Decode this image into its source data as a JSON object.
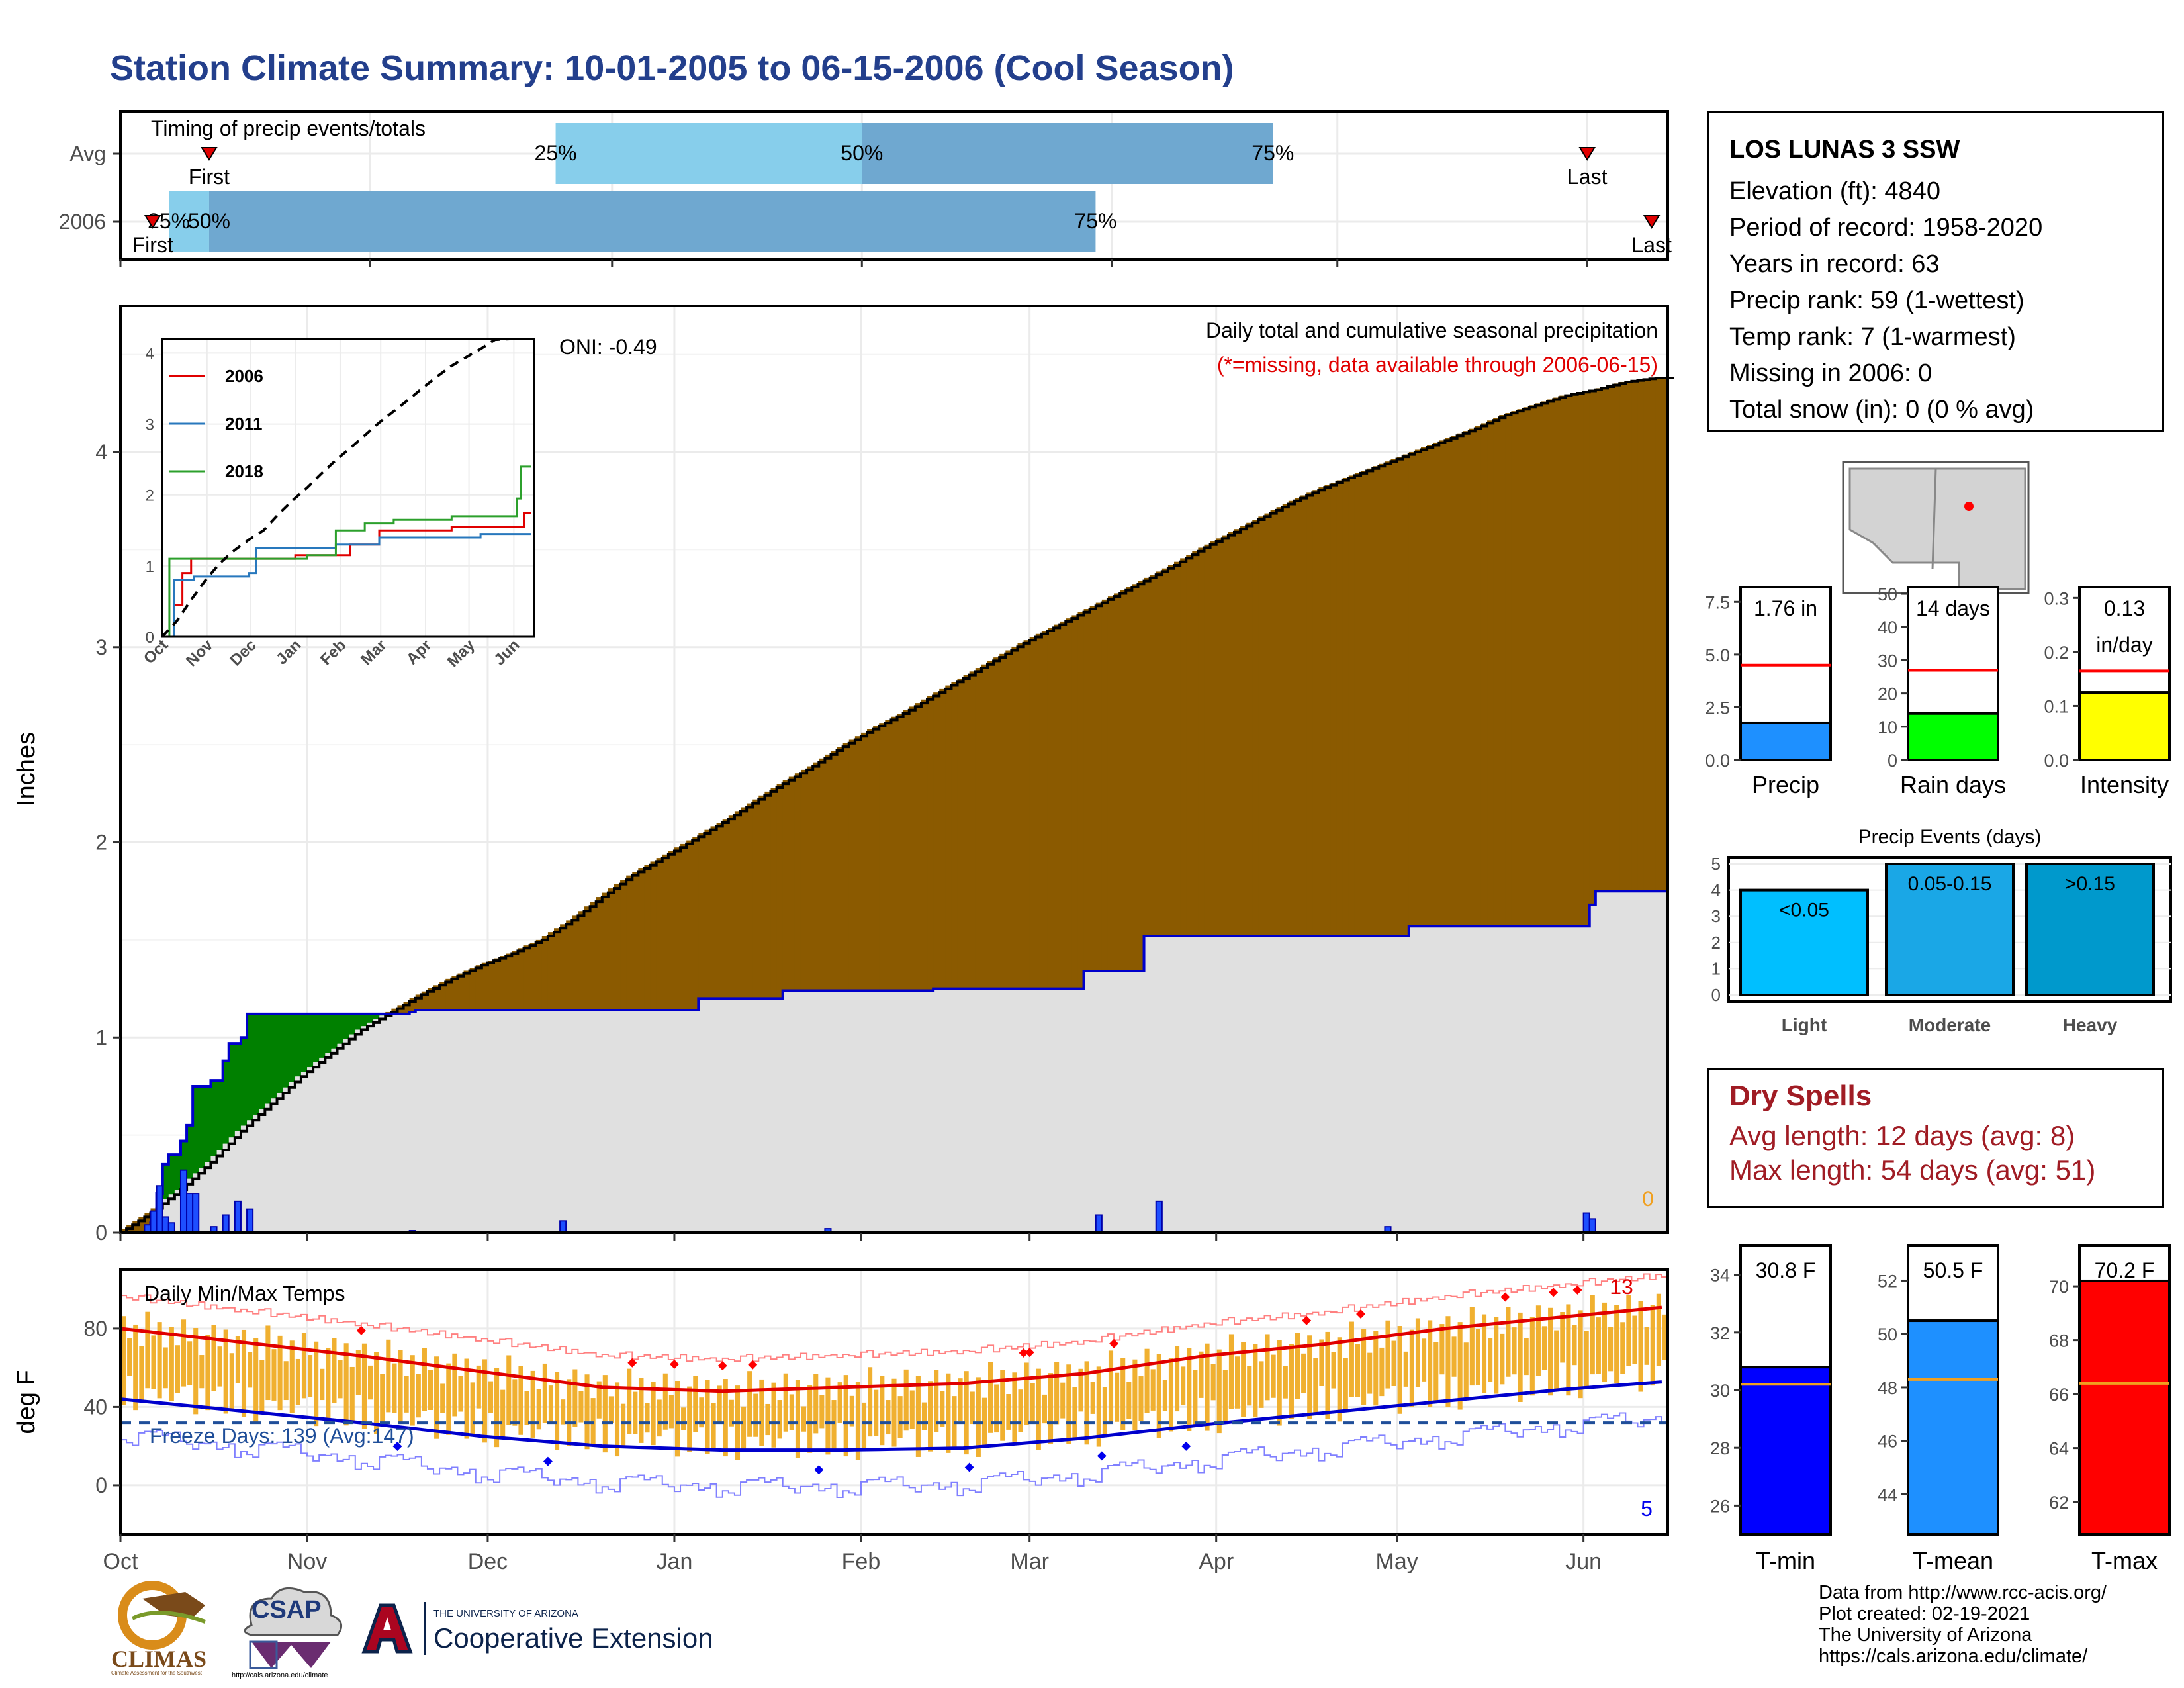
{
  "title": "Station Climate Summary: 10-01-2005 to 06-15-2006 (Cool Season)",
  "timing": {
    "title": "Timing of precip events/totals",
    "rows": [
      {
        "label": "Avg",
        "first": 11,
        "q25": 54,
        "q50": 92,
        "q75": 143,
        "last": 182
      },
      {
        "label": "2006",
        "first": 4,
        "q25": 6,
        "q50": 11,
        "q75": 121,
        "last": 190
      }
    ],
    "marker_first": "First",
    "marker_last": "Last",
    "label_25": "25%",
    "label_50": "50%",
    "label_75": "75%",
    "colors": {
      "light": "#87ceeb",
      "dark": "#6fa8d0",
      "marker": "#e00000"
    }
  },
  "precip": {
    "ylabel": "Inches",
    "title_line1": "Daily total and cumulative seasonal precipitation",
    "title_line2": "(*=missing, data available through 2006-06-15)",
    "oni": "ONI: -0.49",
    "missing_count": "0",
    "yticks": [
      "0",
      "1",
      "2",
      "3",
      "4"
    ],
    "ylim": [
      0,
      4.75
    ],
    "avg_cumulative": {
      "days": [
        0,
        5,
        10,
        15,
        20,
        25,
        30,
        35,
        40,
        45,
        50,
        55,
        60,
        65,
        70,
        75,
        80,
        85,
        90,
        95,
        100,
        105,
        110,
        115,
        120,
        125,
        130,
        135,
        140,
        145,
        150,
        155,
        160,
        165,
        170,
        175,
        180,
        185,
        190,
        195,
        200,
        205,
        210,
        215,
        220,
        225,
        230,
        235,
        240,
        245,
        250,
        255
      ],
      "values": [
        0,
        0.1,
        0.22,
        0.36,
        0.52,
        0.66,
        0.8,
        0.92,
        1.04,
        1.13,
        1.22,
        1.3,
        1.37,
        1.43,
        1.5,
        1.6,
        1.72,
        1.83,
        1.92,
        2.01,
        2.1,
        2.2,
        2.3,
        2.39,
        2.49,
        2.58,
        2.66,
        2.75,
        2.84,
        2.93,
        3.02,
        3.1,
        3.18,
        3.26,
        3.34,
        3.42,
        3.51,
        3.59,
        3.67,
        3.75,
        3.82,
        3.88,
        3.94,
        4.0,
        4.06,
        4.12,
        4.19,
        4.24,
        4.29,
        4.32,
        4.36,
        4.38
      ]
    },
    "cumulative_2006": {
      "steps": [
        [
          0,
          0
        ],
        [
          5,
          0.05
        ],
        [
          6,
          0.2
        ],
        [
          7,
          0.35
        ],
        [
          8,
          0.4
        ],
        [
          10,
          0.47
        ],
        [
          11,
          0.55
        ],
        [
          12,
          0.75
        ],
        [
          15,
          0.78
        ],
        [
          17,
          0.88
        ],
        [
          18,
          0.97
        ],
        [
          20,
          1.0
        ],
        [
          21,
          1.12
        ],
        [
          48,
          1.13
        ],
        [
          49,
          1.14
        ],
        [
          70,
          1.14
        ],
        [
          96,
          1.2
        ],
        [
          110,
          1.24
        ],
        [
          135,
          1.25
        ],
        [
          160,
          1.34
        ],
        [
          170,
          1.52
        ],
        [
          190,
          1.52
        ],
        [
          214,
          1.57
        ],
        [
          243,
          1.57
        ],
        [
          244,
          1.68
        ],
        [
          245,
          1.75
        ],
        [
          257,
          1.75
        ]
      ]
    },
    "daily_bars": [
      {
        "day": 4,
        "value": 0.04
      },
      {
        "day": 5,
        "value": 0.11
      },
      {
        "day": 6,
        "value": 0.24
      },
      {
        "day": 7,
        "value": 0.08
      },
      {
        "day": 8,
        "value": 0.05
      },
      {
        "day": 10,
        "value": 0.32
      },
      {
        "day": 11,
        "value": 0.2
      },
      {
        "day": 12,
        "value": 0.2
      },
      {
        "day": 15,
        "value": 0.03
      },
      {
        "day": 17,
        "value": 0.09
      },
      {
        "day": 19,
        "value": 0.16
      },
      {
        "day": 21,
        "value": 0.12
      },
      {
        "day": 48,
        "value": 0.01
      },
      {
        "day": 73,
        "value": 0.06
      },
      {
        "day": 117,
        "value": 0.02
      },
      {
        "day": 162,
        "value": 0.09
      },
      {
        "day": 172,
        "value": 0.16
      },
      {
        "day": 210,
        "value": 0.03
      },
      {
        "day": 243,
        "value": 0.1
      },
      {
        "day": 244,
        "value": 0.07
      }
    ],
    "colors": {
      "above": "#8b5a00",
      "below": "#008000",
      "fill": "#e0e0e0",
      "line": "#0000cc",
      "bar": "#1e4fff"
    }
  },
  "inset": {
    "ylim": [
      0,
      4.2
    ],
    "yticks": [
      "0",
      "1",
      "2",
      "3",
      "4"
    ],
    "xticks": [
      "Oct",
      "Nov",
      "Dec",
      "Jan",
      "Feb",
      "Mar",
      "Apr",
      "May",
      "Jun"
    ],
    "series": [
      {
        "name": "2006",
        "color": "#e00000",
        "steps": [
          [
            0,
            0
          ],
          [
            8,
            0.45
          ],
          [
            14,
            0.9
          ],
          [
            20,
            1.1
          ],
          [
            92,
            1.15
          ],
          [
            120,
            1.15
          ],
          [
            130,
            1.3
          ],
          [
            150,
            1.5
          ],
          [
            200,
            1.55
          ],
          [
            250,
            1.75
          ],
          [
            255,
            1.75
          ]
        ]
      },
      {
        "name": "2011",
        "color": "#2878bd",
        "steps": [
          [
            0,
            0
          ],
          [
            8,
            0.8
          ],
          [
            14,
            0.8
          ],
          [
            22,
            0.85
          ],
          [
            60,
            0.9
          ],
          [
            65,
            1.25
          ],
          [
            120,
            1.3
          ],
          [
            150,
            1.4
          ],
          [
            220,
            1.45
          ],
          [
            255,
            1.45
          ]
        ]
      },
      {
        "name": "2018",
        "color": "#2ca02c",
        "steps": [
          [
            0,
            0
          ],
          [
            5,
            1.1
          ],
          [
            58,
            1.1
          ],
          [
            100,
            1.15
          ],
          [
            120,
            1.5
          ],
          [
            140,
            1.6
          ],
          [
            160,
            1.65
          ],
          [
            200,
            1.7
          ],
          [
            245,
            1.95
          ],
          [
            248,
            2.4
          ],
          [
            255,
            2.4
          ]
        ]
      }
    ],
    "avg": {
      "days": [
        0,
        10,
        20,
        30,
        40,
        50,
        60,
        70,
        80,
        90,
        100,
        110,
        120,
        130,
        140,
        150,
        160,
        170,
        180,
        190,
        200,
        210,
        220,
        230,
        240,
        250,
        255
      ],
      "values": [
        0,
        0.22,
        0.52,
        0.8,
        1.04,
        1.22,
        1.37,
        1.5,
        1.72,
        1.92,
        2.1,
        2.3,
        2.49,
        2.66,
        2.84,
        3.02,
        3.18,
        3.34,
        3.51,
        3.67,
        3.82,
        3.94,
        4.06,
        4.19,
        4.29,
        4.36,
        4.4
      ]
    }
  },
  "temps": {
    "ylabel": "deg F",
    "title": "Daily Min/Max Temps",
    "freeze_label": "Freeze Days: 139 (Avg:147)",
    "freeze_value": 32,
    "yticks": [
      "0",
      "40",
      "80"
    ],
    "ylim": [
      -25,
      110
    ],
    "count_high": "13",
    "count_low": "5",
    "avg_max": {
      "days": [
        0,
        20,
        40,
        60,
        80,
        100,
        120,
        140,
        160,
        180,
        200,
        220,
        240,
        257
      ],
      "values": [
        80,
        73,
        66,
        58,
        50,
        48,
        50,
        52,
        57,
        66,
        72,
        80,
        86,
        91
      ]
    },
    "avg_min": {
      "days": [
        0,
        20,
        40,
        60,
        80,
        100,
        120,
        140,
        160,
        180,
        200,
        220,
        240,
        257
      ],
      "values": [
        44,
        38,
        32,
        25,
        20,
        18,
        18,
        19,
        24,
        31,
        37,
        43,
        49,
        53
      ]
    },
    "colors": {
      "bar": "#f0b030",
      "max": "#e00000",
      "min": "#0000cc",
      "freeze": "#1f4e99"
    }
  },
  "months": [
    "Oct",
    "Nov",
    "Dec",
    "Jan",
    "Feb",
    "Mar",
    "Apr",
    "May",
    "Jun"
  ],
  "station": {
    "name": "LOS LUNAS 3 SSW",
    "lines": [
      "Elevation (ft): 4840",
      "Period of record: 1958-2020",
      "Years in record: 63",
      "Precip rank: 59 (1-wettest)",
      "Temp rank: 7 (1-warmest)",
      "Missing in 2006: 0",
      "Total snow (in): 0 (0 % avg)"
    ]
  },
  "gauges_precip": [
    {
      "label": "Precip",
      "value_text": "1.76 in",
      "value": 1.76,
      "avg": 4.5,
      "max": 8.2,
      "ticks": [
        "0.0",
        "2.5",
        "5.0",
        "7.5"
      ],
      "tickvals": [
        0,
        2.5,
        5,
        7.5
      ],
      "color": "#1e90ff"
    },
    {
      "label": "Rain days",
      "value_text": "14 days",
      "value": 14,
      "avg": 27,
      "max": 52,
      "ticks": [
        "0",
        "10",
        "20",
        "30",
        "40",
        "50"
      ],
      "tickvals": [
        0,
        10,
        20,
        30,
        40,
        50
      ],
      "color": "#00ff00"
    },
    {
      "label": "Intensity",
      "value_text": "0.13 in/day",
      "value": 0.125,
      "avg": 0.165,
      "max": 0.32,
      "ticks": [
        "0.0",
        "0.1",
        "0.2",
        "0.3"
      ],
      "tickvals": [
        0,
        0.1,
        0.2,
        0.3
      ],
      "color": "#ffff00"
    }
  ],
  "events": {
    "title": "Precip Events (days)",
    "yticks": [
      "0",
      "1",
      "2",
      "3",
      "4",
      "5"
    ],
    "bars": [
      {
        "label": "Light",
        "range": "<0.05",
        "value": 4,
        "color": "#00bfff"
      },
      {
        "label": "Moderate",
        "range": "0.05-0.15",
        "value": 5,
        "color": "#1aa7e6"
      },
      {
        "label": "Heavy",
        "range": ">0.15",
        "value": 5,
        "color": "#0099cc"
      }
    ]
  },
  "dry_spells": {
    "title": "Dry Spells",
    "avg_length": "Avg length: 12 days (avg: 8)",
    "max_length": "Max length: 54 days (avg: 51)"
  },
  "gauges_temp": [
    {
      "label": "T-min",
      "value_text": "30.8 F",
      "value": 30.8,
      "avg": 30.2,
      "min": 25,
      "max": 35,
      "ticks": [
        "26",
        "28",
        "30",
        "32",
        "34"
      ],
      "tickvals": [
        26,
        28,
        30,
        32,
        34
      ],
      "color": "#0000ff"
    },
    {
      "label": "T-mean",
      "value_text": "50.5 F",
      "value": 50.5,
      "avg": 48.3,
      "min": 42.5,
      "max": 53.3,
      "ticks": [
        "44",
        "46",
        "48",
        "50",
        "52"
      ],
      "tickvals": [
        44,
        46,
        48,
        50,
        52
      ],
      "color": "#1e90ff"
    },
    {
      "label": "T-max",
      "value_text": "70.2 F",
      "value": 70.2,
      "avg": 66.4,
      "min": 60.8,
      "max": 71.5,
      "ticks": [
        "62",
        "64",
        "66",
        "68",
        "70"
      ],
      "tickvals": [
        62,
        64,
        66,
        68,
        70
      ],
      "color": "#ff0000"
    }
  ],
  "credits": [
    "Data from http://www.rcc-acis.org/",
    "Plot created: 02-19-2021",
    "The University of Arizona",
    "https://cals.arizona.edu/climate/"
  ],
  "logos": {
    "climas": "CLIMAS",
    "climas_sub": "Climate Assessment for the Southwest",
    "csap": "CSAP",
    "csap_url": "http://cals.arizona.edu/climate",
    "ua_small": "THE UNIVERSITY OF ARIZONA",
    "ua_big": "Cooperative Extension"
  }
}
